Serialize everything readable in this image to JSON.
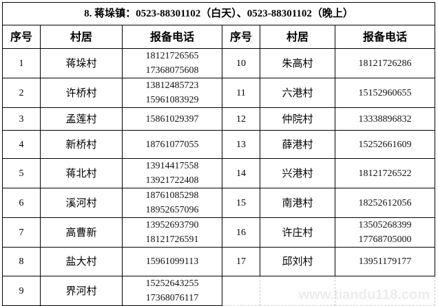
{
  "title": "8. 蒋垛镇：0523-88301102（白天）、0523-88301102（晚上）",
  "headers": {
    "no": "序号",
    "village": "村居",
    "phone": "报备电话"
  },
  "left": [
    {
      "no": "1",
      "village": "蒋垛村",
      "phones": [
        "18121726565",
        "17368075608"
      ]
    },
    {
      "no": "2",
      "village": "许桥村",
      "phones": [
        "13812485723",
        "15961083929"
      ]
    },
    {
      "no": "3",
      "village": "孟莲村",
      "phones": [
        "15861029397"
      ]
    },
    {
      "no": "4",
      "village": "新桥村",
      "phones": [
        "18761077055"
      ]
    },
    {
      "no": "5",
      "village": "蒋北村",
      "phones": [
        "13914417558",
        "13921722408"
      ]
    },
    {
      "no": "6",
      "village": "溪河村",
      "phones": [
        "18761085298",
        "18952657096"
      ]
    },
    {
      "no": "7",
      "village": "高曹新",
      "phones": [
        "13952693790",
        "18121726591"
      ]
    },
    {
      "no": "8",
      "village": "盐大村",
      "phones": [
        "15961099113"
      ]
    },
    {
      "no": "9",
      "village": "界河村",
      "phones": [
        "15252643255",
        "17368076117"
      ]
    }
  ],
  "right": [
    {
      "no": "10",
      "village": "朱高村",
      "phones": [
        "18121726286"
      ]
    },
    {
      "no": "11",
      "village": "六港村",
      "phones": [
        "15152960655"
      ]
    },
    {
      "no": "12",
      "village": "仲院村",
      "phones": [
        "13338896832"
      ]
    },
    {
      "no": "13",
      "village": "薛港村",
      "phones": [
        "15252661609"
      ]
    },
    {
      "no": "14",
      "village": "兴港村",
      "phones": [
        "18121726522"
      ]
    },
    {
      "no": "15",
      "village": "南港村",
      "phones": [
        "18252612056"
      ]
    },
    {
      "no": "16",
      "village": "许庄村",
      "phones": [
        "13505268399",
        "17768705000"
      ]
    },
    {
      "no": "17",
      "village": "邱刘村",
      "phones": [
        "13951179177"
      ]
    }
  ],
  "watermark": "www.tiandu118.com"
}
